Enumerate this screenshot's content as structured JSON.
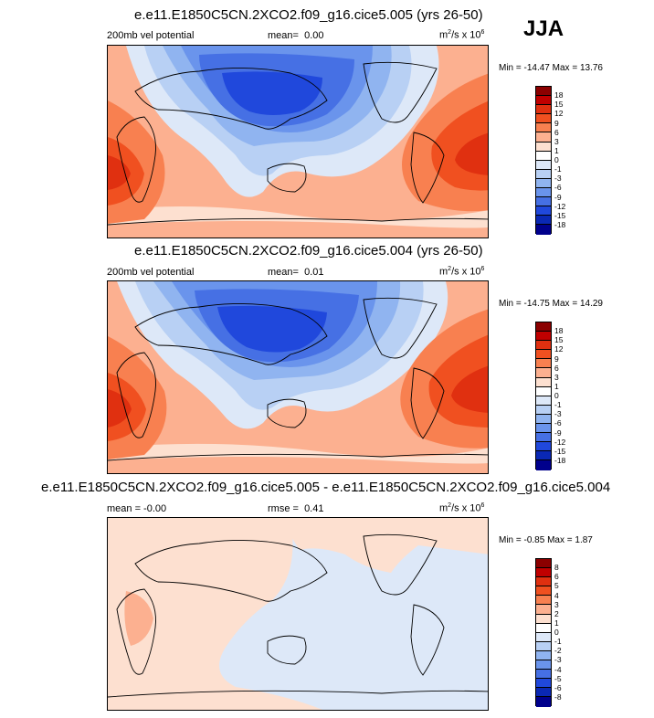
{
  "season": "JJA",
  "chart_data": [
    {
      "type": "heatmap",
      "title": "e.e11.E1850C5CN.2XCO2.f09_g16.cice5.005 (yrs 26-50)",
      "variable": "200mb vel potential",
      "stat_label": "mean=",
      "stat_value": "0.00",
      "units_prefix": "m",
      "units_sup1": "2",
      "units_mid": "/s x 10",
      "units_sup2": "6",
      "min_label": "Min =",
      "min_value": "-14.47",
      "max_label": "Max =",
      "max_value": "13.76",
      "colorbar_levels": [
        "18",
        "15",
        "12",
        "9",
        "6",
        "3",
        "1",
        "0",
        "-1",
        "-3",
        "-6",
        "-9",
        "-12",
        "-15",
        "-18"
      ],
      "colors": [
        "#8b0000",
        "#c00000",
        "#e03010",
        "#f05020",
        "#f88050",
        "#fcb090",
        "#fde0d0",
        "#ffffff",
        "#dde8f8",
        "#b8d0f4",
        "#90b4f0",
        "#6a94ec",
        "#4670e4",
        "#2048dc",
        "#0a28b4",
        "#00008c"
      ]
    },
    {
      "type": "heatmap",
      "title": "e.e11.E1850C5CN.2XCO2.f09_g16.cice5.004 (yrs 26-50)",
      "variable": "200mb vel potential",
      "stat_label": "mean=",
      "stat_value": "0.01",
      "units_prefix": "m",
      "units_sup1": "2",
      "units_mid": "/s x 10",
      "units_sup2": "6",
      "min_label": "Min =",
      "min_value": "-14.75",
      "max_label": "Max =",
      "max_value": "14.29",
      "colorbar_levels": [
        "18",
        "15",
        "12",
        "9",
        "6",
        "3",
        "1",
        "0",
        "-1",
        "-3",
        "-6",
        "-9",
        "-12",
        "-15",
        "-18"
      ],
      "colors": [
        "#8b0000",
        "#c00000",
        "#e03010",
        "#f05020",
        "#f88050",
        "#fcb090",
        "#fde0d0",
        "#ffffff",
        "#dde8f8",
        "#b8d0f4",
        "#90b4f0",
        "#6a94ec",
        "#4670e4",
        "#2048dc",
        "#0a28b4",
        "#00008c"
      ]
    },
    {
      "type": "heatmap",
      "title": "e.e11.E1850C5CN.2XCO2.f09_g16.cice5.005 - e.e11.E1850C5CN.2XCO2.f09_g16.cice5.004",
      "variable": "mean = -0.00",
      "stat_label": "rmse =",
      "stat_value": "0.41",
      "units_prefix": "m",
      "units_sup1": "2",
      "units_mid": "/s x 10",
      "units_sup2": "6",
      "min_label": "Min =",
      "min_value": "-0.85",
      "max_label": "Max =",
      "max_value": "1.87",
      "colorbar_levels": [
        "8",
        "6",
        "5",
        "4",
        "3",
        "2",
        "1",
        "0",
        "-1",
        "-2",
        "-3",
        "-4",
        "-5",
        "-6",
        "-8"
      ],
      "colors": [
        "#8b0000",
        "#c00000",
        "#e03010",
        "#f05020",
        "#f88050",
        "#fcb090",
        "#fde0d0",
        "#ffffff",
        "#dde8f8",
        "#b8d0f4",
        "#90b4f0",
        "#6a94ec",
        "#4670e4",
        "#2048dc",
        "#0a28b4",
        "#00008c"
      ]
    }
  ]
}
